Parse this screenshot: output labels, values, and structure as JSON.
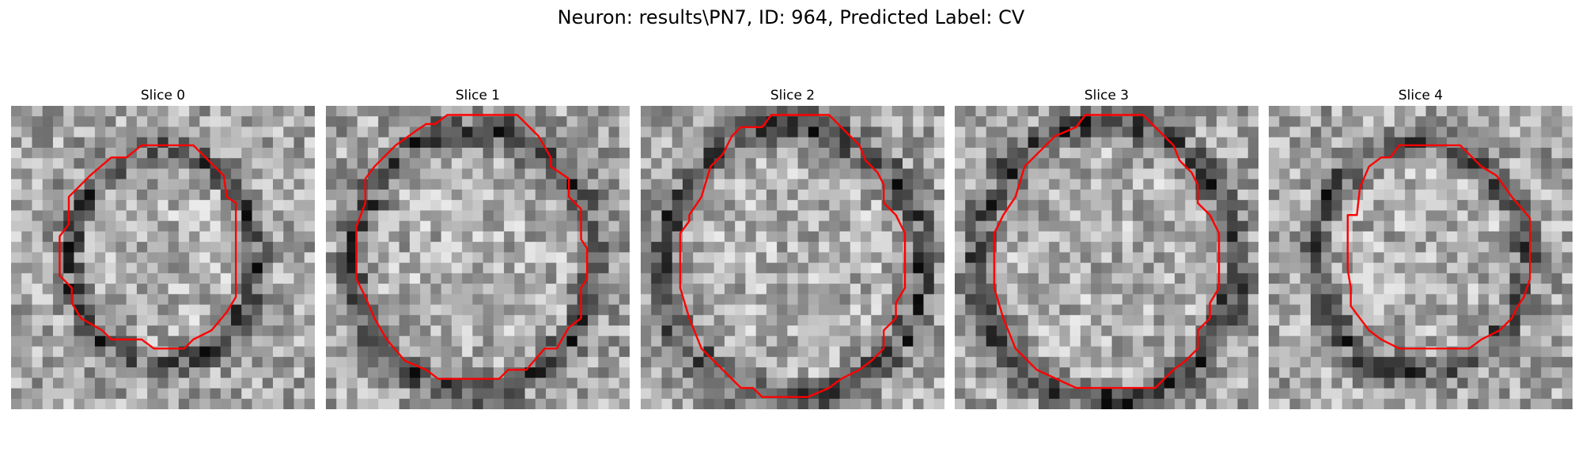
{
  "title": "Neuron: results\\PN7, ID: 964, Predicted Label: CV",
  "colors": {
    "contour": "#ff0000",
    "background": "#ffffff"
  },
  "panels": [
    {
      "title": "Slice 0",
      "seed": 11,
      "boundary_center": [
        0.5,
        0.5
      ],
      "boundary_radius": [
        0.3,
        0.35
      ],
      "contour": [
        [
          0.43,
          0.13
        ],
        [
          0.6,
          0.13
        ],
        [
          0.7,
          0.23
        ],
        [
          0.71,
          0.3
        ],
        [
          0.74,
          0.32
        ],
        [
          0.74,
          0.63
        ],
        [
          0.71,
          0.68
        ],
        [
          0.66,
          0.74
        ],
        [
          0.6,
          0.77
        ],
        [
          0.57,
          0.8
        ],
        [
          0.47,
          0.8
        ],
        [
          0.43,
          0.77
        ],
        [
          0.33,
          0.77
        ],
        [
          0.3,
          0.74
        ],
        [
          0.23,
          0.7
        ],
        [
          0.2,
          0.65
        ],
        [
          0.2,
          0.6
        ],
        [
          0.16,
          0.56
        ],
        [
          0.16,
          0.43
        ],
        [
          0.19,
          0.39
        ],
        [
          0.19,
          0.3
        ],
        [
          0.26,
          0.23
        ],
        [
          0.33,
          0.17
        ],
        [
          0.38,
          0.17
        ]
      ]
    },
    {
      "title": "Slice 1",
      "seed": 23,
      "boundary_center": [
        0.49,
        0.51
      ],
      "boundary_radius": [
        0.39,
        0.42
      ],
      "contour": [
        [
          0.4,
          0.03
        ],
        [
          0.63,
          0.03
        ],
        [
          0.7,
          0.1
        ],
        [
          0.74,
          0.17
        ],
        [
          0.74,
          0.2
        ],
        [
          0.8,
          0.24
        ],
        [
          0.8,
          0.3
        ],
        [
          0.84,
          0.34
        ],
        [
          0.84,
          0.44
        ],
        [
          0.86,
          0.47
        ],
        [
          0.86,
          0.57
        ],
        [
          0.84,
          0.6
        ],
        [
          0.84,
          0.7
        ],
        [
          0.8,
          0.73
        ],
        [
          0.76,
          0.8
        ],
        [
          0.72,
          0.8
        ],
        [
          0.66,
          0.87
        ],
        [
          0.6,
          0.87
        ],
        [
          0.57,
          0.9
        ],
        [
          0.37,
          0.9
        ],
        [
          0.33,
          0.87
        ],
        [
          0.26,
          0.84
        ],
        [
          0.2,
          0.77
        ],
        [
          0.16,
          0.7
        ],
        [
          0.13,
          0.63
        ],
        [
          0.1,
          0.57
        ],
        [
          0.1,
          0.4
        ],
        [
          0.13,
          0.32
        ],
        [
          0.13,
          0.24
        ],
        [
          0.16,
          0.2
        ],
        [
          0.2,
          0.16
        ],
        [
          0.23,
          0.13
        ],
        [
          0.3,
          0.08
        ],
        [
          0.33,
          0.06
        ],
        [
          0.36,
          0.06
        ]
      ]
    },
    {
      "title": "Slice 2",
      "seed": 37,
      "boundary_center": [
        0.5,
        0.52
      ],
      "boundary_radius": [
        0.42,
        0.44
      ],
      "contour": [
        [
          0.33,
          0.07
        ],
        [
          0.4,
          0.07
        ],
        [
          0.43,
          0.03
        ],
        [
          0.62,
          0.03
        ],
        [
          0.66,
          0.07
        ],
        [
          0.72,
          0.13
        ],
        [
          0.74,
          0.18
        ],
        [
          0.78,
          0.22
        ],
        [
          0.8,
          0.26
        ],
        [
          0.8,
          0.32
        ],
        [
          0.84,
          0.36
        ],
        [
          0.87,
          0.42
        ],
        [
          0.87,
          0.6
        ],
        [
          0.84,
          0.65
        ],
        [
          0.84,
          0.7
        ],
        [
          0.8,
          0.74
        ],
        [
          0.8,
          0.8
        ],
        [
          0.76,
          0.84
        ],
        [
          0.72,
          0.87
        ],
        [
          0.66,
          0.9
        ],
        [
          0.62,
          0.93
        ],
        [
          0.55,
          0.96
        ],
        [
          0.4,
          0.96
        ],
        [
          0.37,
          0.93
        ],
        [
          0.33,
          0.93
        ],
        [
          0.27,
          0.87
        ],
        [
          0.2,
          0.8
        ],
        [
          0.16,
          0.7
        ],
        [
          0.13,
          0.6
        ],
        [
          0.13,
          0.42
        ],
        [
          0.16,
          0.38
        ],
        [
          0.16,
          0.36
        ],
        [
          0.2,
          0.3
        ],
        [
          0.23,
          0.2
        ],
        [
          0.27,
          0.16
        ],
        [
          0.3,
          0.1
        ]
      ]
    },
    {
      "title": "Slice 3",
      "seed": 53,
      "boundary_center": [
        0.5,
        0.52
      ],
      "boundary_radius": [
        0.42,
        0.45
      ],
      "contour": [
        [
          0.4,
          0.07
        ],
        [
          0.4,
          0.07
        ],
        [
          0.43,
          0.03
        ],
        [
          0.62,
          0.03
        ],
        [
          0.66,
          0.07
        ],
        [
          0.72,
          0.13
        ],
        [
          0.74,
          0.18
        ],
        [
          0.78,
          0.22
        ],
        [
          0.8,
          0.26
        ],
        [
          0.8,
          0.32
        ],
        [
          0.84,
          0.36
        ],
        [
          0.87,
          0.42
        ],
        [
          0.87,
          0.6
        ],
        [
          0.84,
          0.65
        ],
        [
          0.84,
          0.7
        ],
        [
          0.8,
          0.74
        ],
        [
          0.8,
          0.8
        ],
        [
          0.76,
          0.84
        ],
        [
          0.72,
          0.87
        ],
        [
          0.69,
          0.9
        ],
        [
          0.66,
          0.93
        ],
        [
          0.4,
          0.93
        ],
        [
          0.27,
          0.87
        ],
        [
          0.2,
          0.8
        ],
        [
          0.16,
          0.7
        ],
        [
          0.13,
          0.6
        ],
        [
          0.13,
          0.42
        ],
        [
          0.16,
          0.36
        ],
        [
          0.2,
          0.3
        ],
        [
          0.23,
          0.2
        ],
        [
          0.27,
          0.16
        ],
        [
          0.33,
          0.1
        ]
      ]
    },
    {
      "title": "Slice 4",
      "seed": 71,
      "boundary_center": [
        0.5,
        0.5
      ],
      "boundary_radius": [
        0.34,
        0.37
      ],
      "contour": [
        [
          0.43,
          0.13
        ],
        [
          0.63,
          0.13
        ],
        [
          0.7,
          0.2
        ],
        [
          0.75,
          0.23
        ],
        [
          0.8,
          0.3
        ],
        [
          0.86,
          0.37
        ],
        [
          0.86,
          0.57
        ],
        [
          0.84,
          0.63
        ],
        [
          0.82,
          0.66
        ],
        [
          0.8,
          0.7
        ],
        [
          0.76,
          0.74
        ],
        [
          0.7,
          0.77
        ],
        [
          0.66,
          0.8
        ],
        [
          0.43,
          0.8
        ],
        [
          0.37,
          0.77
        ],
        [
          0.33,
          0.74
        ],
        [
          0.3,
          0.7
        ],
        [
          0.27,
          0.66
        ],
        [
          0.27,
          0.6
        ],
        [
          0.26,
          0.54
        ],
        [
          0.26,
          0.36
        ],
        [
          0.29,
          0.36
        ],
        [
          0.3,
          0.27
        ],
        [
          0.33,
          0.2
        ],
        [
          0.37,
          0.17
        ],
        [
          0.4,
          0.17
        ]
      ]
    }
  ]
}
